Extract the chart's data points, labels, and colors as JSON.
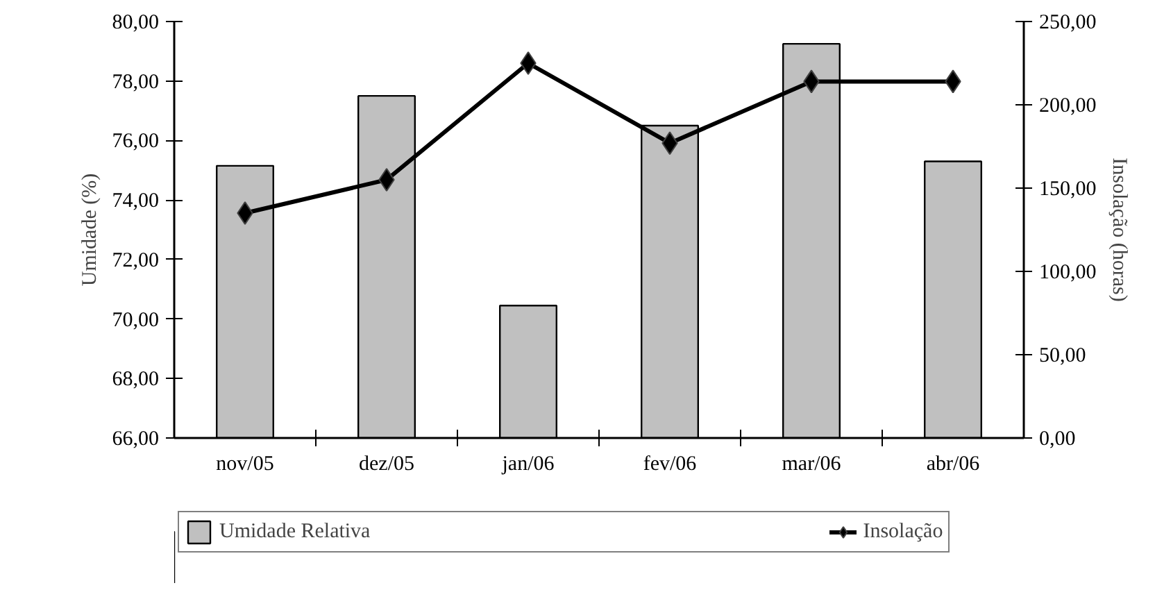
{
  "chart_data": {
    "type": "bar",
    "categories": [
      "nov/05",
      "dez/05",
      "jan/06",
      "fev/06",
      "mar/06",
      "abr/06"
    ],
    "ylabel": "Umidade (%)",
    "y2label": "Insolação (horas)",
    "ylim": [
      66,
      80
    ],
    "yticks": [
      {
        "value": 66,
        "label": "66,00"
      },
      {
        "value": 68,
        "label": "68,00"
      },
      {
        "value": 70,
        "label": "70,00"
      },
      {
        "value": 72,
        "label": "72,00"
      },
      {
        "value": 74,
        "label": "74,00"
      },
      {
        "value": 76,
        "label": "76,00"
      },
      {
        "value": 78,
        "label": "78,00"
      },
      {
        "value": 80,
        "label": "80,00"
      }
    ],
    "y2lim": [
      0,
      250
    ],
    "y2ticks": [
      {
        "value": 0,
        "label": "0,00"
      },
      {
        "value": 50,
        "label": "50,00"
      },
      {
        "value": 100,
        "label": "100,00"
      },
      {
        "value": 150,
        "label": "150,00"
      },
      {
        "value": 200,
        "label": "200,00"
      },
      {
        "value": 250,
        "label": "250,00"
      }
    ],
    "series": [
      {
        "name": "Umidade Relativa",
        "color": "#c0c0c0",
        "values": [
          75.15,
          77.5,
          70.45,
          76.5,
          79.25,
          75.3
        ]
      },
      {
        "name": "Insolação",
        "type": "line",
        "axis": "y2",
        "color": "#000000",
        "marker": "diamond",
        "values": [
          135,
          155,
          225,
          177,
          214,
          214
        ]
      }
    ],
    "legend": "bottom",
    "grid": false
  }
}
